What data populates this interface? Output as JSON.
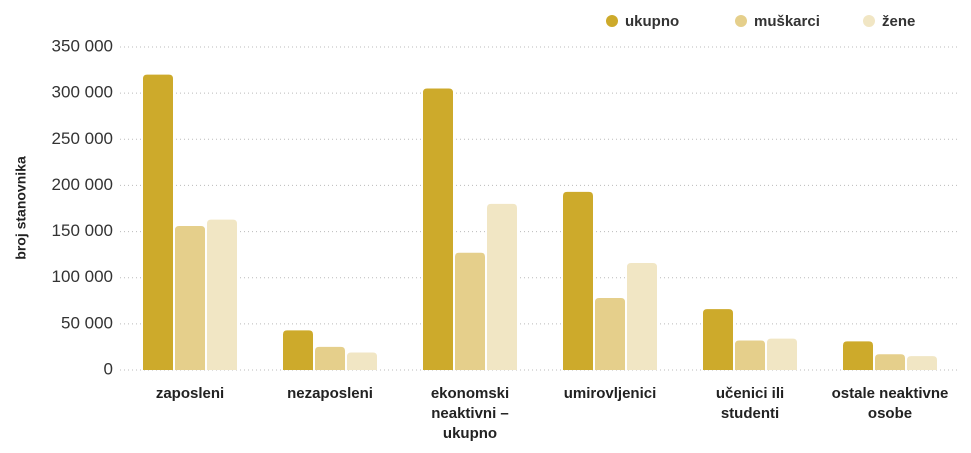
{
  "chart_data": {
    "type": "bar",
    "y_label": "broj stanovnika",
    "categories": [
      "zaposleni",
      "nezaposleni",
      "ekonomski neaktivni – ukupno",
      "umirovljenici",
      "učenici ili studenti",
      "ostale neaktivne osobe"
    ],
    "series": [
      {
        "name": "ukupno",
        "color": "#cdaa2b",
        "values": [
          320000,
          43000,
          305000,
          193000,
          66000,
          31000
        ]
      },
      {
        "name": "muškarci",
        "color": "#e5cf8b",
        "values": [
          156000,
          25000,
          127000,
          78000,
          32000,
          17000
        ]
      },
      {
        "name": "žene",
        "color": "#f1e6c4",
        "values": [
          163000,
          19000,
          180000,
          116000,
          34000,
          15000
        ]
      }
    ],
    "ylim": [
      0,
      350000
    ],
    "yticks": [
      0,
      {
        "value": 50000,
        "label": "50 000"
      },
      {
        "value": 100000,
        "label": "100 000"
      },
      {
        "value": 150000,
        "label": "150 000"
      },
      {
        "value": 200000,
        "label": "200 000"
      },
      {
        "value": 250000,
        "label": "250 000"
      },
      {
        "value": 300000,
        "label": "300 000"
      },
      {
        "value": 350000,
        "label": "350 000"
      }
    ],
    "grid": true,
    "legend": "top-right"
  }
}
